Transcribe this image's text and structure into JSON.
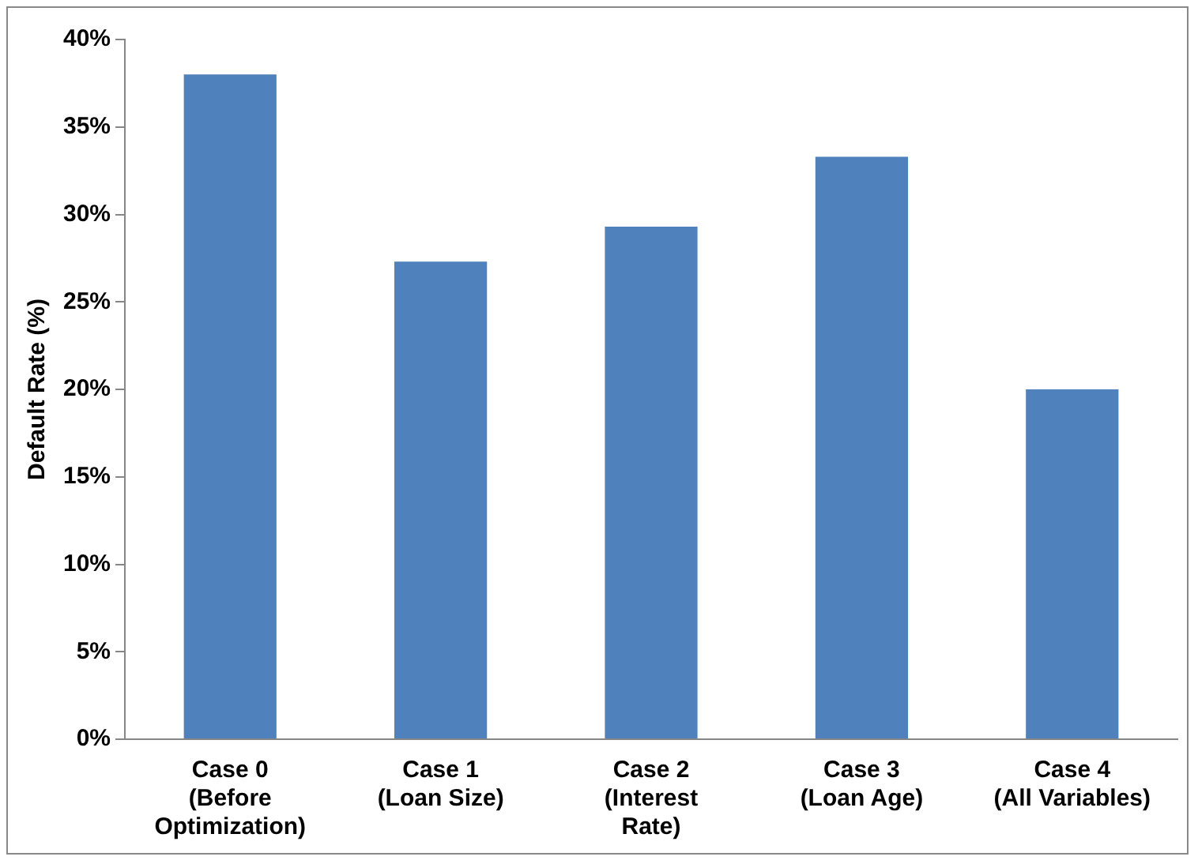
{
  "chart_data": {
    "type": "bar",
    "ylabel": "Default Rate (%)",
    "categories": [
      "Case 0\n(Before\nOptimization)",
      "Case 1\n(Loan Size)",
      "Case 2\n(Interest\nRate)",
      "Case 3\n(Loan Age)",
      "Case 4\n(All Variables)"
    ],
    "values": [
      38,
      27.3,
      29.3,
      33.3,
      20
    ],
    "color": "#4f81bd",
    "ylim": [
      0,
      40
    ],
    "yticks": [
      {
        "value": 0,
        "label": "0%"
      },
      {
        "value": 5,
        "label": "5%"
      },
      {
        "value": 10,
        "label": "10%"
      },
      {
        "value": 15,
        "label": "15%"
      },
      {
        "value": 20,
        "label": "20%"
      },
      {
        "value": 25,
        "label": "25%"
      },
      {
        "value": 30,
        "label": "30%"
      },
      {
        "value": 35,
        "label": "35%"
      },
      {
        "value": 40,
        "label": "40%"
      }
    ],
    "grid": false,
    "legend": false
  }
}
